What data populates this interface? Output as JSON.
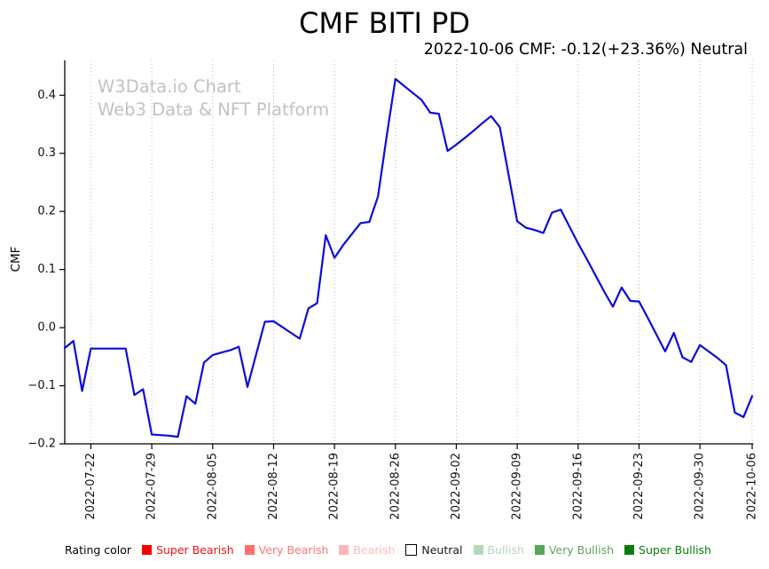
{
  "title": "CMF BITI PD",
  "subtitle": "2022-10-06 CMF: -0.12(+23.36%) Neutral",
  "watermark": {
    "line1": "W3Data.io Chart",
    "line2": "Web3 Data & NFT Platform"
  },
  "chart_data": {
    "type": "line",
    "title": "CMF BITI PD",
    "xlabel": "",
    "ylabel": "CMF",
    "series_name": "CMF",
    "line_color": "#0a0ae0",
    "grid": "vertical-dotted",
    "grid_color": "#b0b0b0",
    "ylim": [
      -0.2,
      0.46
    ],
    "x": [
      "2022-07-19",
      "2022-07-20",
      "2022-07-21",
      "2022-07-22",
      "2022-07-23",
      "2022-07-24",
      "2022-07-25",
      "2022-07-26",
      "2022-07-27",
      "2022-07-28",
      "2022-07-29",
      "2022-07-30",
      "2022-07-31",
      "2022-08-01",
      "2022-08-02",
      "2022-08-03",
      "2022-08-04",
      "2022-08-05",
      "2022-08-06",
      "2022-08-07",
      "2022-08-08",
      "2022-08-09",
      "2022-08-10",
      "2022-08-11",
      "2022-08-12",
      "2022-08-13",
      "2022-08-14",
      "2022-08-15",
      "2022-08-16",
      "2022-08-17",
      "2022-08-18",
      "2022-08-19",
      "2022-08-20",
      "2022-08-21",
      "2022-08-22",
      "2022-08-23",
      "2022-08-24",
      "2022-08-25",
      "2022-08-26",
      "2022-08-27",
      "2022-08-28",
      "2022-08-29",
      "2022-08-30",
      "2022-08-31",
      "2022-09-01",
      "2022-09-02",
      "2022-09-03",
      "2022-09-04",
      "2022-09-05",
      "2022-09-06",
      "2022-09-07",
      "2022-09-08",
      "2022-09-09",
      "2022-09-10",
      "2022-09-11",
      "2022-09-12",
      "2022-09-13",
      "2022-09-14",
      "2022-09-15",
      "2022-09-16",
      "2022-09-17",
      "2022-09-18",
      "2022-09-19",
      "2022-09-20",
      "2022-09-21",
      "2022-09-22",
      "2022-09-23",
      "2022-09-24",
      "2022-09-25",
      "2022-09-26",
      "2022-09-27",
      "2022-09-28",
      "2022-09-29",
      "2022-09-30",
      "2022-10-01",
      "2022-10-02",
      "2022-10-03",
      "2022-10-04",
      "2022-10-05",
      "2022-10-06"
    ],
    "y": [
      -0.035,
      -0.023,
      -0.109,
      -0.036,
      -0.036,
      -0.036,
      -0.036,
      -0.036,
      -0.116,
      -0.106,
      -0.184,
      -0.185,
      -0.186,
      -0.188,
      -0.118,
      -0.131,
      -0.06,
      -0.047,
      -0.043,
      -0.039,
      -0.033,
      -0.102,
      -0.046,
      0.01,
      0.011,
      0.001,
      -0.009,
      -0.019,
      0.033,
      0.042,
      0.159,
      0.12,
      0.142,
      0.161,
      0.18,
      0.182,
      0.226,
      0.33,
      0.428,
      0.416,
      0.404,
      0.392,
      0.37,
      0.368,
      0.304,
      0.315,
      0.327,
      0.339,
      0.352,
      0.364,
      0.345,
      0.264,
      0.183,
      0.172,
      0.168,
      0.163,
      0.198,
      0.203,
      0.174,
      0.145,
      0.118,
      0.09,
      0.062,
      0.036,
      0.069,
      0.046,
      0.045,
      0.017,
      -0.012,
      -0.041,
      -0.009,
      -0.051,
      -0.059,
      -0.03,
      -0.041,
      -0.052,
      -0.065,
      -0.146,
      -0.154,
      -0.118
    ],
    "x_ticks": [
      "2022-07-22",
      "2022-07-29",
      "2022-08-05",
      "2022-08-12",
      "2022-08-19",
      "2022-08-26",
      "2022-09-02",
      "2022-09-09",
      "2022-09-16",
      "2022-09-23",
      "2022-09-30",
      "2022-10-06"
    ],
    "y_ticks": [
      {
        "label": "0.4",
        "value": 0.4
      },
      {
        "label": "0.3",
        "value": 0.3
      },
      {
        "label": "0.2",
        "value": 0.2
      },
      {
        "label": "0.1",
        "value": 0.1
      },
      {
        "label": "0.0",
        "value": 0.0
      },
      {
        "label": "−0.1",
        "value": -0.1
      },
      {
        "label": "−0.2",
        "value": -0.2
      }
    ],
    "legend_position": "bottom"
  },
  "legend": {
    "label": "Rating color",
    "items": [
      {
        "label": "Super Bearish",
        "swatch_color": "#f40000",
        "text_color": "#f31111",
        "swatch_border": ""
      },
      {
        "label": "Very Bearish",
        "swatch_color": "#ff6e6e",
        "text_color": "#ff7575",
        "swatch_border": ""
      },
      {
        "label": "Bearish",
        "swatch_color": "#ffb6b6",
        "text_color": "#ffbaba",
        "swatch_border": ""
      },
      {
        "label": "Neutral",
        "swatch_color": "#ffffff",
        "text_color": "#1a1a1a",
        "swatch_border": "#000000"
      },
      {
        "label": "Bullish",
        "swatch_color": "#b5d9b5",
        "text_color": "#b7d7b7",
        "swatch_border": ""
      },
      {
        "label": "Very Bullish",
        "swatch_color": "#55a655",
        "text_color": "#5aa45a",
        "swatch_border": ""
      },
      {
        "label": "Super Bullish",
        "swatch_color": "#0b7d0b",
        "text_color": "#0a800a",
        "swatch_border": ""
      }
    ]
  }
}
